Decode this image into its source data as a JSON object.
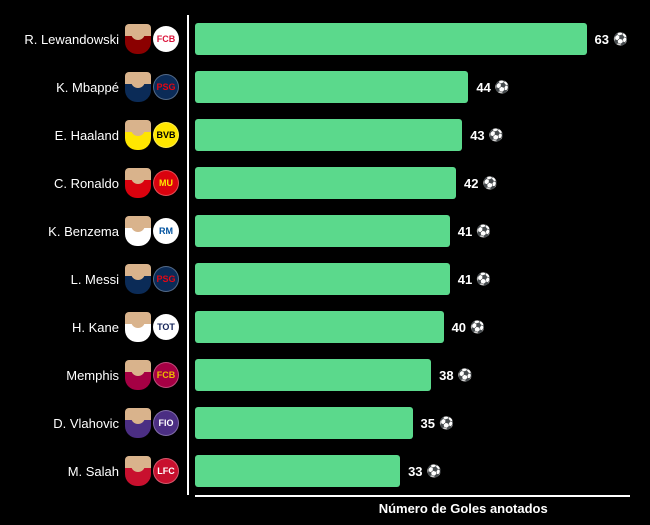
{
  "xlabel": "Número de Goles anotados",
  "bar_color": "#5bd98c",
  "background_color": "#000000",
  "text_color": "#ffffff",
  "axis_color": "#ffffff",
  "max_value": 70,
  "ball_icon": "⚽",
  "players": [
    {
      "name": "R. Lewandowski",
      "goals": 63,
      "shirt": "#8b0000",
      "club_bg": "#ffffff",
      "club_fg": "#dc143c",
      "club_text": "FCB"
    },
    {
      "name": "K. Mbappé",
      "goals": 44,
      "shirt": "#0b2b57",
      "club_bg": "#0b2b57",
      "club_fg": "#e30613",
      "club_text": "PSG"
    },
    {
      "name": "E. Haaland",
      "goals": 43,
      "shirt": "#ffe600",
      "club_bg": "#ffe600",
      "club_fg": "#000000",
      "club_text": "BVB"
    },
    {
      "name": "C. Ronaldo",
      "goals": 42,
      "shirt": "#da020e",
      "club_bg": "#da020e",
      "club_fg": "#ffe600",
      "club_text": "MU"
    },
    {
      "name": "K. Benzema",
      "goals": 41,
      "shirt": "#ffffff",
      "club_bg": "#ffffff",
      "club_fg": "#00529f",
      "club_text": "RM"
    },
    {
      "name": "L. Messi",
      "goals": 41,
      "shirt": "#0b2b57",
      "club_bg": "#0b2b57",
      "club_fg": "#e30613",
      "club_text": "PSG"
    },
    {
      "name": "H. Kane",
      "goals": 40,
      "shirt": "#ffffff",
      "club_bg": "#ffffff",
      "club_fg": "#132257",
      "club_text": "TOT"
    },
    {
      "name": "Memphis",
      "goals": 38,
      "shirt": "#a50044",
      "club_bg": "#a50044",
      "club_fg": "#edbb00",
      "club_text": "FCB"
    },
    {
      "name": "D. Vlahovic",
      "goals": 35,
      "shirt": "#4b2e83",
      "club_bg": "#4b2e83",
      "club_fg": "#ffffff",
      "club_text": "FIO"
    },
    {
      "name": "M. Salah",
      "goals": 33,
      "shirt": "#c8102e",
      "club_bg": "#c8102e",
      "club_fg": "#ffffff",
      "club_text": "LFC"
    }
  ]
}
